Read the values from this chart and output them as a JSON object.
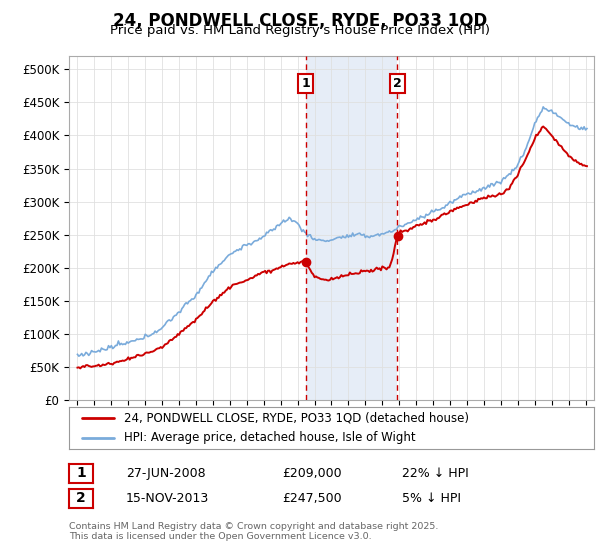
{
  "title": "24, PONDWELL CLOSE, RYDE, PO33 1QD",
  "subtitle": "Price paid vs. HM Land Registry's House Price Index (HPI)",
  "ylim": [
    0,
    520000
  ],
  "yticks": [
    0,
    50000,
    100000,
    150000,
    200000,
    250000,
    300000,
    350000,
    400000,
    450000,
    500000
  ],
  "ytick_labels": [
    "£0",
    "£50K",
    "£100K",
    "£150K",
    "£200K",
    "£250K",
    "£300K",
    "£350K",
    "£400K",
    "£450K",
    "£500K"
  ],
  "hpi_color": "#7aabdb",
  "price_color": "#cc0000",
  "purchase1_date": 2008.49,
  "purchase1_price": 209000,
  "purchase2_date": 2013.88,
  "purchase2_price": 247500,
  "shade_color": "#c8d8ee",
  "shade_alpha": 0.45,
  "background_color": "#ffffff",
  "grid_color": "#e0e0e0",
  "legend_label_price": "24, PONDWELL CLOSE, RYDE, PO33 1QD (detached house)",
  "legend_label_hpi": "HPI: Average price, detached house, Isle of Wight",
  "table_row1": [
    "1",
    "27-JUN-2008",
    "£209,000",
    "22% ↓ HPI"
  ],
  "table_row2": [
    "2",
    "15-NOV-2013",
    "£247,500",
    "5% ↓ HPI"
  ],
  "footer": "Contains HM Land Registry data © Crown copyright and database right 2025.\nThis data is licensed under the Open Government Licence v3.0.",
  "xlim_start": 1994.5,
  "xlim_end": 2025.5
}
